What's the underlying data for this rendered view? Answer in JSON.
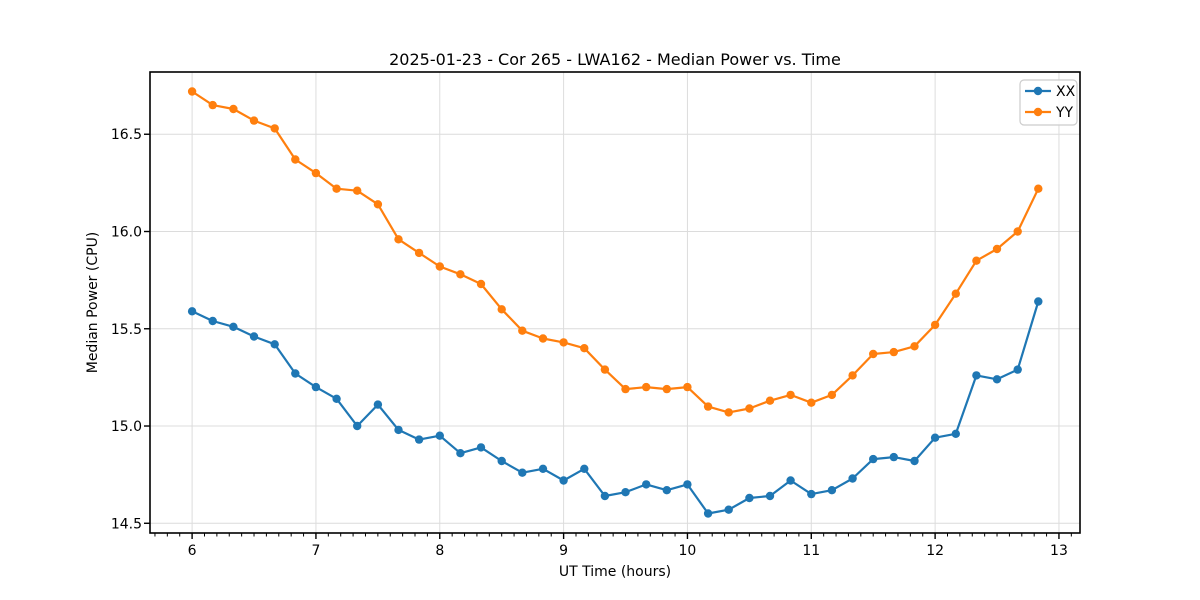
{
  "figure": {
    "title": "2025-01-23 - Cor 265 - LWA162 - Median Power vs. Time",
    "xlabel": "UT Time (hours)",
    "ylabel": "Median Power (CPU)"
  },
  "legend": {
    "position": "upper right",
    "items": [
      {
        "label": "XX",
        "color": "#1f77b4"
      },
      {
        "label": "YY",
        "color": "#ff7f0e"
      }
    ]
  },
  "colors": {
    "series_xx": "#1f77b4",
    "series_yy": "#ff7f0e",
    "grid": "#dcdcdc",
    "spine": "#000000",
    "legend_border": "#cccccc"
  },
  "chart_data": {
    "type": "line",
    "title": "2025-01-23 - Cor 265 - LWA162 - Median Power vs. Time",
    "xlabel": "UT Time (hours)",
    "ylabel": "Median Power (CPU)",
    "grid": true,
    "legend_position": "upper right",
    "marker": "o",
    "xlim": [
      5.66,
      13.17
    ],
    "ylim": [
      14.45,
      16.82
    ],
    "xticks": [
      6,
      7,
      8,
      9,
      10,
      11,
      12,
      13
    ],
    "yticks": [
      14.5,
      15.0,
      15.5,
      16.0,
      16.5
    ],
    "x_minor_tick_step": 0.1,
    "x": [
      6.0,
      6.1667,
      6.3333,
      6.5,
      6.6667,
      6.8333,
      7.0,
      7.1667,
      7.3333,
      7.5,
      7.6667,
      7.8333,
      8.0,
      8.1667,
      8.3333,
      8.5,
      8.6667,
      8.8333,
      9.0,
      9.1667,
      9.3333,
      9.5,
      9.6667,
      9.8333,
      10.0,
      10.1667,
      10.3333,
      10.5,
      10.6667,
      10.8333,
      11.0,
      11.1667,
      11.3333,
      11.5,
      11.6667,
      11.8333,
      12.0,
      12.1667,
      12.3333,
      12.5,
      12.6667,
      12.8333
    ],
    "series": [
      {
        "name": "XX",
        "color": "#1f77b4",
        "values": [
          15.59,
          15.54,
          15.51,
          15.46,
          15.42,
          15.27,
          15.2,
          15.14,
          15.0,
          15.11,
          14.98,
          14.93,
          14.95,
          14.86,
          14.89,
          14.82,
          14.76,
          14.78,
          14.72,
          14.78,
          14.64,
          14.66,
          14.7,
          14.67,
          14.7,
          14.55,
          14.57,
          14.63,
          14.64,
          14.72,
          14.65,
          14.67,
          14.73,
          14.83,
          14.84,
          14.82,
          14.94,
          14.96,
          15.26,
          15.24,
          15.29,
          15.64
        ]
      },
      {
        "name": "YY",
        "color": "#ff7f0e",
        "values": [
          16.72,
          16.65,
          16.63,
          16.57,
          16.53,
          16.37,
          16.3,
          16.22,
          16.21,
          16.14,
          15.96,
          15.89,
          15.82,
          15.78,
          15.73,
          15.6,
          15.49,
          15.45,
          15.43,
          15.4,
          15.29,
          15.19,
          15.2,
          15.19,
          15.2,
          15.1,
          15.07,
          15.09,
          15.13,
          15.16,
          15.12,
          15.16,
          15.26,
          15.37,
          15.38,
          15.41,
          15.52,
          15.68,
          15.85,
          15.91,
          16.0,
          16.22
        ]
      }
    ]
  }
}
